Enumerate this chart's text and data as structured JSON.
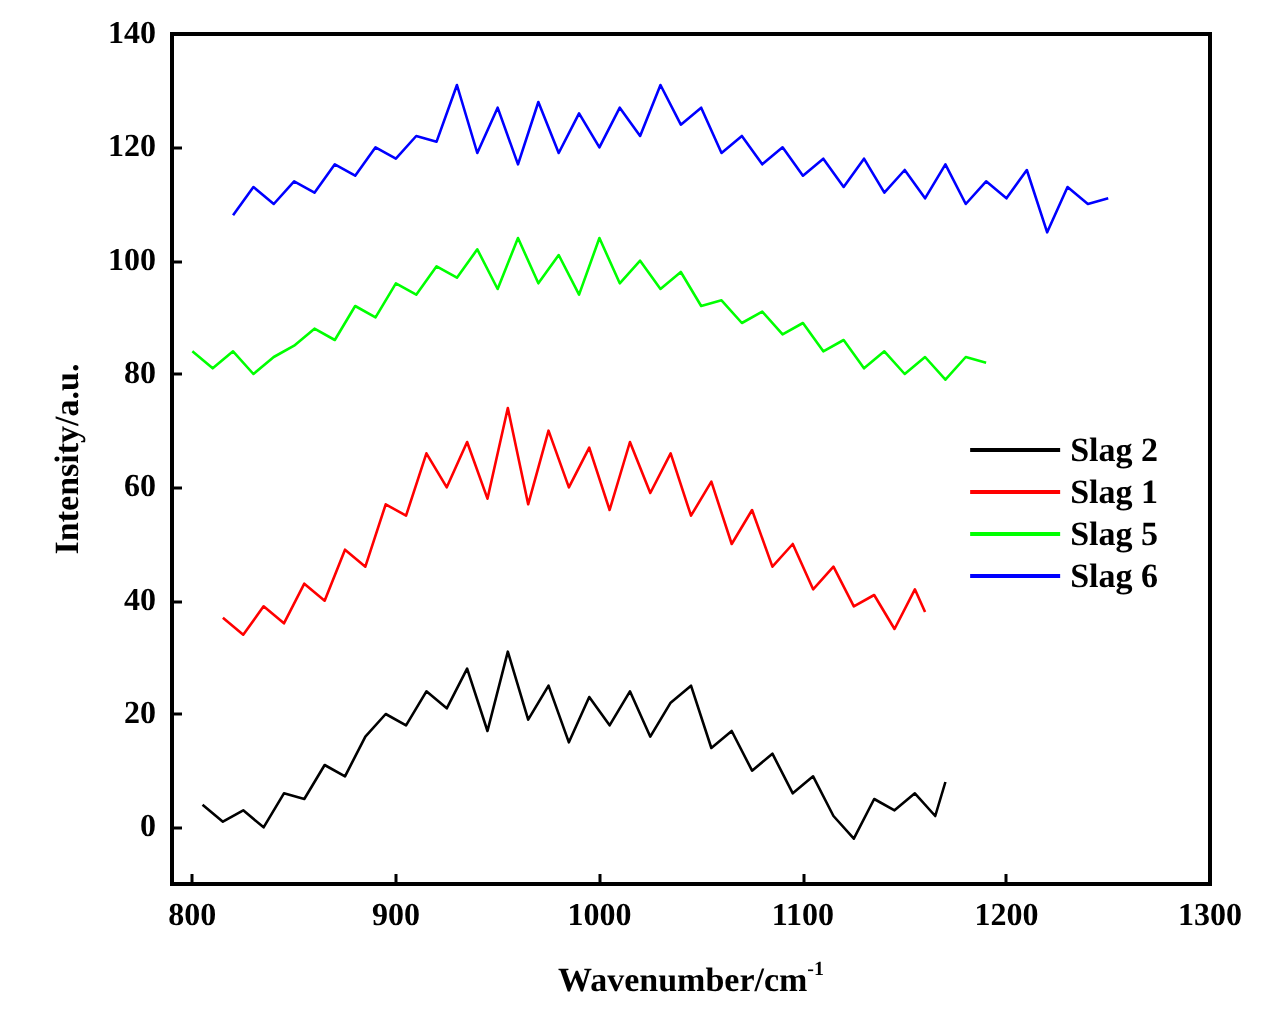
{
  "chart_data": {
    "type": "line",
    "xlabel": "Wavenumber/cm$^{-1}$",
    "ylabel": "Intensity/a.u.",
    "xlim": [
      790,
      1300
    ],
    "xticks": [
      800,
      900,
      1000,
      1100,
      1200,
      1300
    ],
    "ylim": [
      -10,
      140
    ],
    "yticks": [
      0,
      20,
      40,
      60,
      80,
      100,
      120,
      140
    ],
    "grid": false,
    "legend": "right",
    "marker": "none",
    "line_style": "solid",
    "series": [
      {
        "name": "Slag 2",
        "color": "#000000",
        "x": [
          805,
          815,
          825,
          835,
          845,
          855,
          865,
          875,
          885,
          895,
          905,
          915,
          925,
          935,
          945,
          955,
          965,
          975,
          985,
          995,
          1005,
          1015,
          1025,
          1035,
          1045,
          1055,
          1065,
          1075,
          1085,
          1095,
          1105,
          1115,
          1125,
          1135,
          1145,
          1155,
          1165,
          1170
        ],
        "values": [
          4,
          1,
          3,
          0,
          6,
          5,
          11,
          9,
          16,
          20,
          18,
          24,
          21,
          28,
          17,
          31,
          19,
          25,
          15,
          23,
          18,
          24,
          16,
          22,
          25,
          14,
          17,
          10,
          13,
          6,
          9,
          2,
          -2,
          5,
          3,
          6,
          2,
          8
        ]
      },
      {
        "name": "Slag 1",
        "color": "#ff0000",
        "x": [
          815,
          825,
          835,
          845,
          855,
          865,
          875,
          885,
          895,
          905,
          915,
          925,
          935,
          945,
          955,
          965,
          975,
          985,
          995,
          1005,
          1015,
          1025,
          1035,
          1045,
          1055,
          1065,
          1075,
          1085,
          1095,
          1105,
          1115,
          1125,
          1135,
          1145,
          1155,
          1160
        ],
        "values": [
          37,
          34,
          39,
          36,
          43,
          40,
          49,
          46,
          57,
          55,
          66,
          60,
          68,
          58,
          74,
          57,
          70,
          60,
          67,
          56,
          68,
          59,
          66,
          55,
          61,
          50,
          56,
          46,
          50,
          42,
          46,
          39,
          41,
          35,
          42,
          38
        ]
      },
      {
        "name": "Slag 5",
        "color": "#00ff00",
        "x": [
          800,
          810,
          820,
          830,
          840,
          850,
          860,
          870,
          880,
          890,
          900,
          910,
          920,
          930,
          940,
          950,
          960,
          970,
          980,
          990,
          1000,
          1010,
          1020,
          1030,
          1040,
          1050,
          1060,
          1070,
          1080,
          1090,
          1100,
          1110,
          1120,
          1130,
          1140,
          1150,
          1160,
          1170,
          1180,
          1190
        ],
        "values": [
          84,
          81,
          84,
          80,
          83,
          85,
          88,
          86,
          92,
          90,
          96,
          94,
          99,
          97,
          102,
          95,
          104,
          96,
          101,
          94,
          104,
          96,
          100,
          95,
          98,
          92,
          93,
          89,
          91,
          87,
          89,
          84,
          86,
          81,
          84,
          80,
          83,
          79,
          83,
          82
        ]
      },
      {
        "name": "Slag 6",
        "color": "#0000ff",
        "x": [
          820,
          830,
          840,
          850,
          860,
          870,
          880,
          890,
          900,
          910,
          920,
          930,
          940,
          950,
          960,
          970,
          980,
          990,
          1000,
          1010,
          1020,
          1030,
          1040,
          1050,
          1060,
          1070,
          1080,
          1090,
          1100,
          1110,
          1120,
          1130,
          1140,
          1150,
          1160,
          1170,
          1180,
          1190,
          1200,
          1210,
          1220,
          1230,
          1240,
          1250
        ],
        "values": [
          108,
          113,
          110,
          114,
          112,
          117,
          115,
          120,
          118,
          122,
          121,
          131,
          119,
          127,
          117,
          128,
          119,
          126,
          120,
          127,
          122,
          131,
          124,
          127,
          119,
          122,
          117,
          120,
          115,
          118,
          113,
          118,
          112,
          116,
          111,
          117,
          110,
          114,
          111,
          116,
          105,
          113,
          110,
          111
        ]
      }
    ]
  }
}
